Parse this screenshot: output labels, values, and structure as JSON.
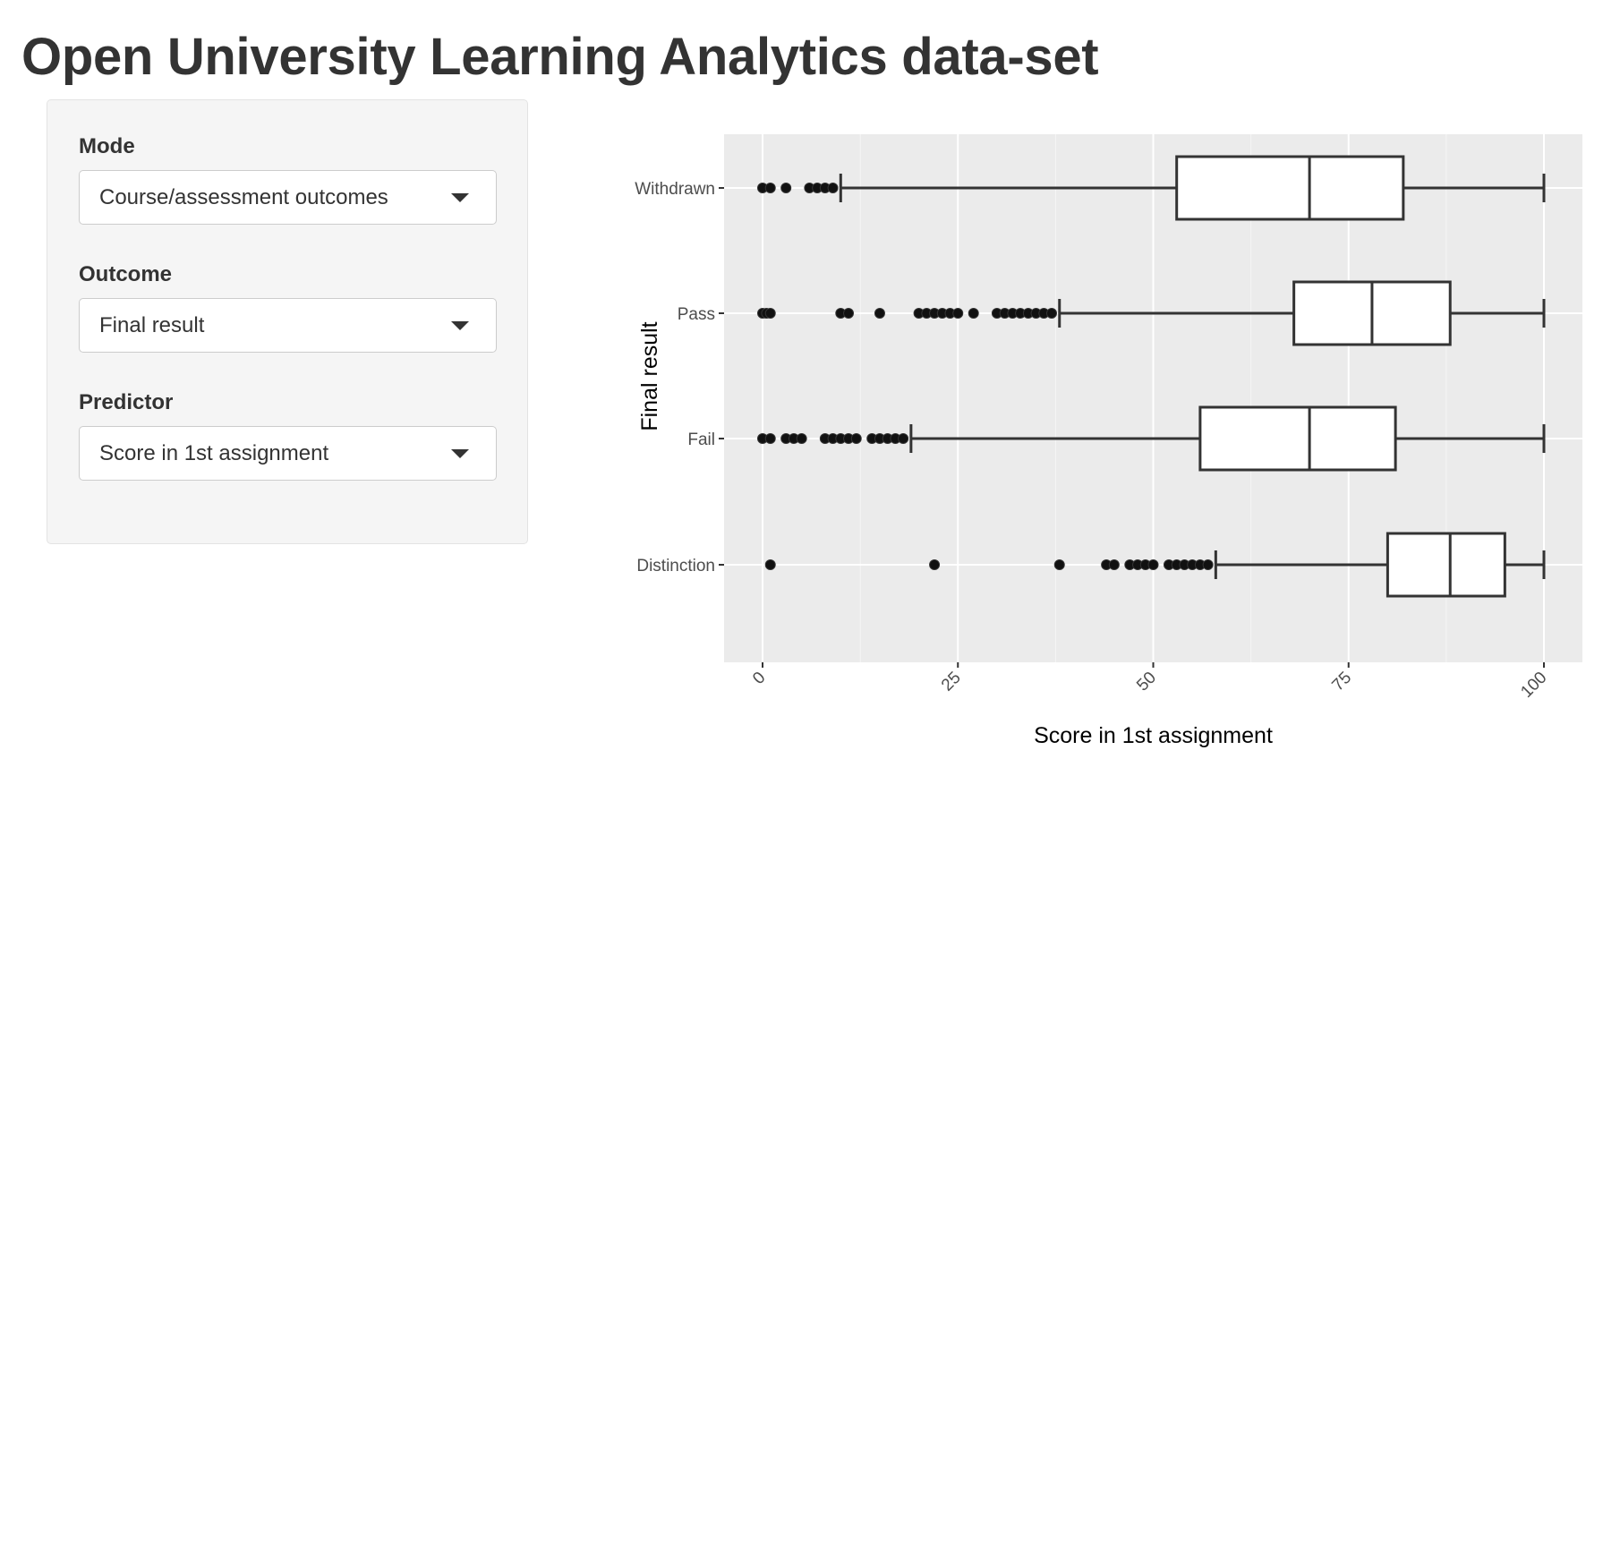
{
  "page": {
    "title": "Open University Learning Analytics data-set"
  },
  "sidebar": {
    "controls": [
      {
        "label": "Mode",
        "value": "Course/assessment outcomes"
      },
      {
        "label": "Outcome",
        "value": "Final result"
      },
      {
        "label": "Predictor",
        "value": "Score in 1st assignment"
      }
    ]
  },
  "chart_data": {
    "type": "boxplot",
    "orientation": "horizontal",
    "title": "",
    "xlabel": "Score in 1st assignment",
    "ylabel": "Final result",
    "xlim": [
      0,
      100
    ],
    "x_ticks": [
      0,
      25,
      50,
      75,
      100
    ],
    "x_tick_labels": [
      "0",
      "25",
      "50",
      "75",
      "100"
    ],
    "categories": [
      "Withdrawn",
      "Pass",
      "Fail",
      "Distinction"
    ],
    "grid": true,
    "panel_background": "#ebebeb",
    "series": [
      {
        "category": "Withdrawn",
        "min": 10,
        "q1": 53,
        "median": 70,
        "q3": 82,
        "max": 100,
        "outliers": [
          0,
          1,
          3,
          6,
          7,
          8,
          9
        ]
      },
      {
        "category": "Pass",
        "min": 38,
        "q1": 68,
        "median": 78,
        "q3": 88,
        "max": 100,
        "outliers": [
          0,
          0.5,
          1,
          10,
          11,
          15,
          20,
          21,
          22,
          23,
          24,
          25,
          27,
          30,
          31,
          32,
          33,
          34,
          35,
          36,
          37
        ]
      },
      {
        "category": "Fail",
        "min": 19,
        "q1": 56,
        "median": 70,
        "q3": 81,
        "max": 100,
        "outliers": [
          0,
          1,
          3,
          4,
          5,
          8,
          9,
          10,
          11,
          12,
          14,
          15,
          16,
          17,
          18
        ]
      },
      {
        "category": "Distinction",
        "min": 58,
        "q1": 80,
        "median": 88,
        "q3": 95,
        "max": 100,
        "outliers": [
          1,
          22,
          38,
          44,
          45,
          47,
          48,
          49,
          50,
          52,
          53,
          54,
          55,
          56,
          57
        ]
      }
    ]
  }
}
